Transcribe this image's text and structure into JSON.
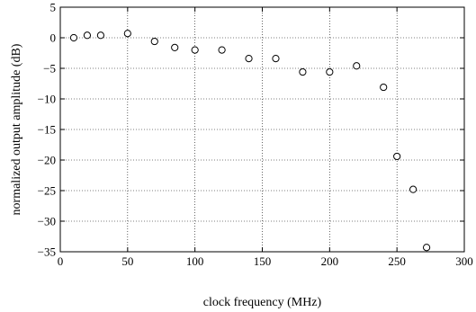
{
  "chart_data": {
    "type": "scatter",
    "title": "",
    "xlabel": "clock frequency (MHz)",
    "ylabel": "normalized output amplitude  (dB)",
    "xlim": [
      0,
      300
    ],
    "ylim": [
      -35,
      5
    ],
    "xticks": [
      0,
      50,
      100,
      150,
      200,
      250,
      300
    ],
    "yticks": [
      5,
      0,
      -5,
      -10,
      -15,
      -20,
      -25,
      -30,
      -35
    ],
    "grid": true,
    "marker": "open-circle",
    "series": [
      {
        "x": [
          10,
          20,
          30,
          50,
          70,
          85,
          100,
          120,
          140,
          160,
          180,
          200,
          220,
          240,
          250,
          262,
          272
        ],
        "y": [
          0,
          0.4,
          0.4,
          0.7,
          -0.6,
          -1.6,
          -2.0,
          -2.0,
          -3.4,
          -3.4,
          -5.6,
          -5.6,
          -4.6,
          -8.1,
          -19.4,
          -24.8,
          -34.3
        ]
      }
    ]
  }
}
